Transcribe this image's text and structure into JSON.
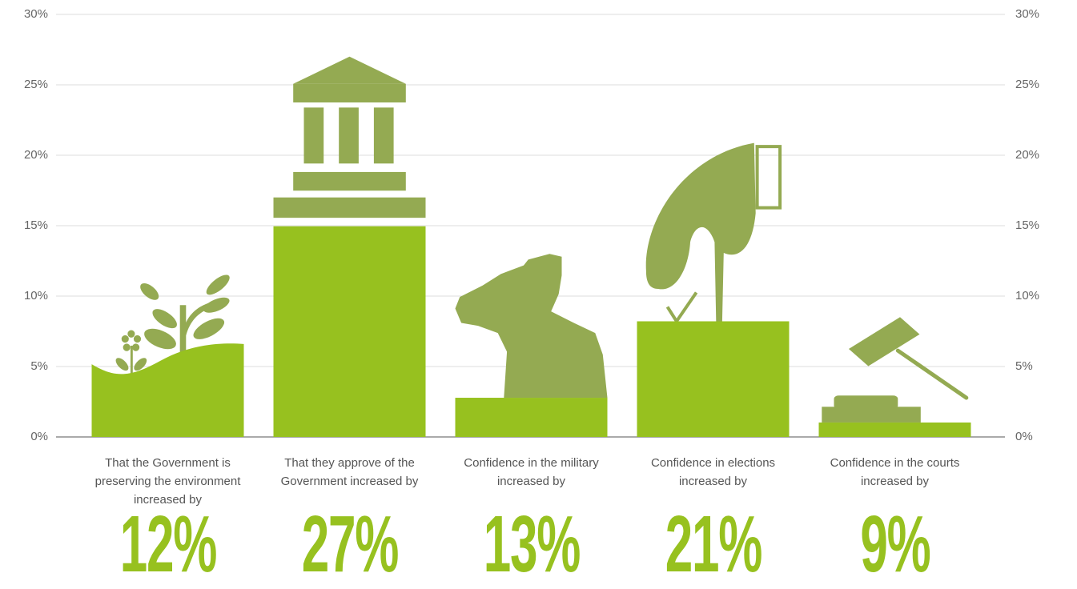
{
  "chart_data": {
    "type": "icon-bar",
    "categories": [
      "That the Government is preserving the environment increased by",
      "That they approve of the Government increased by",
      "Confidence in the military increased by",
      "Confidence in elections increased by",
      "Confidence in the courts increased by"
    ],
    "values": [
      12,
      27,
      13,
      21,
      9
    ],
    "value_labels": [
      "12%",
      "27%",
      "13%",
      "21%",
      "9%"
    ],
    "color": "#97c11f",
    "icon_color": "#94aa52",
    "ylim": [
      0,
      30
    ],
    "yticks": [
      {
        "value": 0,
        "label": "0%"
      },
      {
        "value": 5,
        "label": "5%"
      },
      {
        "value": 10,
        "label": "10%"
      },
      {
        "value": 15,
        "label": "15%"
      },
      {
        "value": 20,
        "label": "20%"
      },
      {
        "value": 25,
        "label": "25%"
      },
      {
        "value": 30,
        "label": "30%"
      }
    ],
    "y2lim": [
      0,
      30
    ],
    "y2ticks": [
      {
        "value": 0,
        "label": "0%"
      },
      {
        "value": 5,
        "label": "5%"
      },
      {
        "value": 10,
        "label": "10%"
      },
      {
        "value": 15,
        "label": "15%"
      },
      {
        "value": 20,
        "label": "20%"
      },
      {
        "value": 25,
        "label": "25%"
      },
      {
        "value": 30,
        "label": "30%"
      }
    ],
    "grid": true
  }
}
